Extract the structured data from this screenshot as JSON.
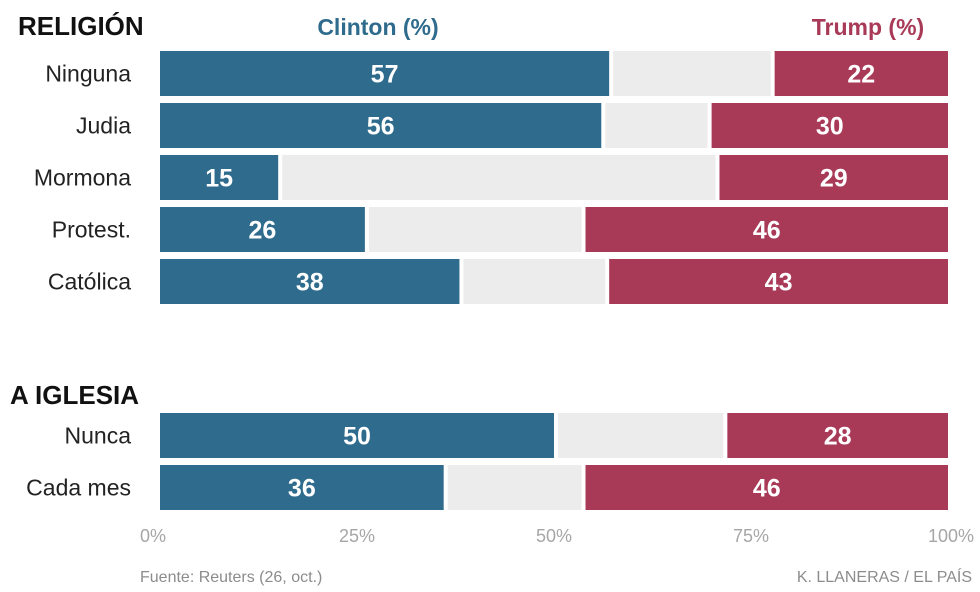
{
  "chart_data": {
    "type": "bar",
    "orientation": "horizontal",
    "stacked": true,
    "series_headers": {
      "clinton": "Clinton (%)",
      "trump": "Trump (%)"
    },
    "colors": {
      "clinton": "#2f6b8c",
      "trump": "#a83a57",
      "other": "#ececec"
    },
    "xlim": [
      0,
      100
    ],
    "ticks": [
      "0%",
      "25%",
      "50%",
      "75%",
      "100%"
    ],
    "groups": [
      {
        "title": "RELIGIÓN",
        "categories": [
          "Ninguna",
          "Judia",
          "Mormona",
          "Protest.",
          "Católica"
        ],
        "series": [
          {
            "name": "Clinton (%)",
            "values": [
              57,
              56,
              15,
              26,
              38
            ]
          },
          {
            "name": "Trump (%)",
            "values": [
              22,
              30,
              29,
              46,
              43
            ]
          }
        ]
      },
      {
        "title": "A IGLESIA",
        "categories": [
          "Nunca",
          "Cada mes"
        ],
        "series": [
          {
            "name": "Clinton (%)",
            "values": [
              50,
              36
            ]
          },
          {
            "name": "Trump (%)",
            "values": [
              28,
              46
            ]
          }
        ]
      }
    ]
  },
  "footer": {
    "source": "Fuente: Reuters (26, oct.)",
    "credit": "K. LLANERAS  /  EL PAÍS"
  }
}
